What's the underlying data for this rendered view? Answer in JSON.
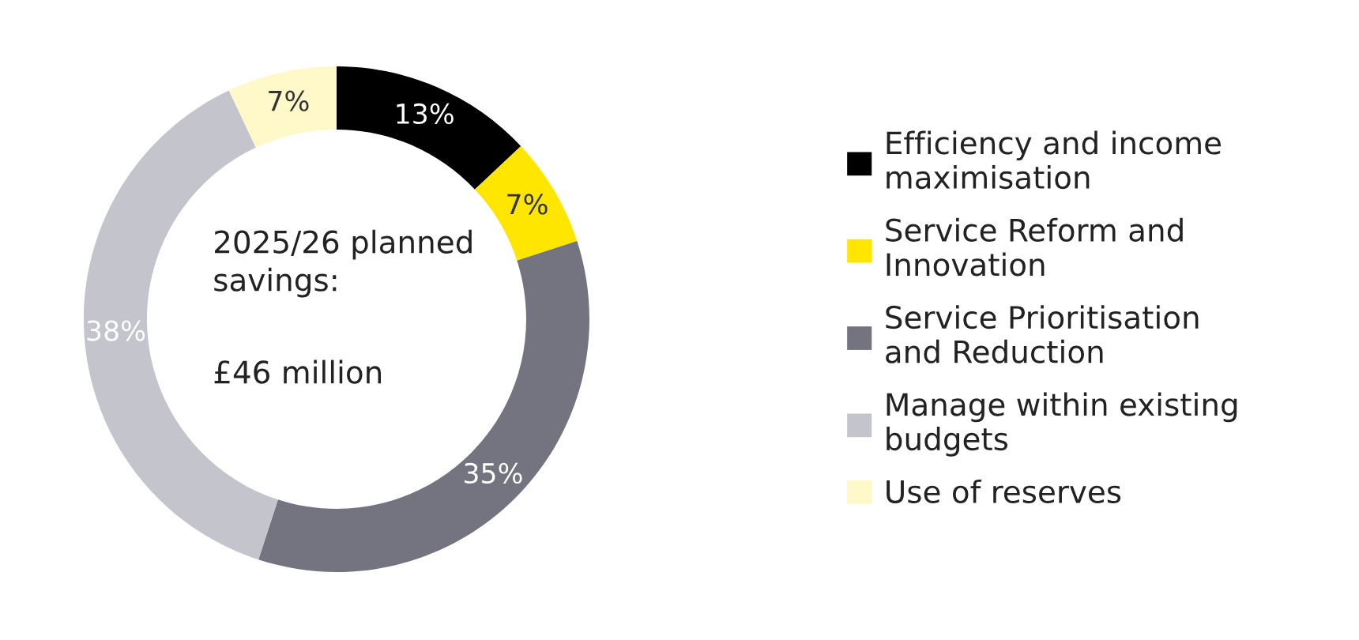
{
  "chart_data": {
    "type": "donut",
    "categories": [
      "Efficiency and income maximisation",
      "Service Reform and Innovation",
      "Service Prioritisation and Reduction",
      "Manage within existing budgets",
      "Use of reserves"
    ],
    "values": [
      13,
      7,
      35,
      38,
      7
    ],
    "value_labels": [
      "13%",
      "7%",
      "35%",
      "38%",
      "7%"
    ],
    "colors": [
      "#000000",
      "#ffe600",
      "#747480",
      "#c4c4cd",
      "#fff8c8"
    ],
    "annotations": [
      "2025/26 planned savings:",
      "£46 million"
    ],
    "legend": "right"
  }
}
